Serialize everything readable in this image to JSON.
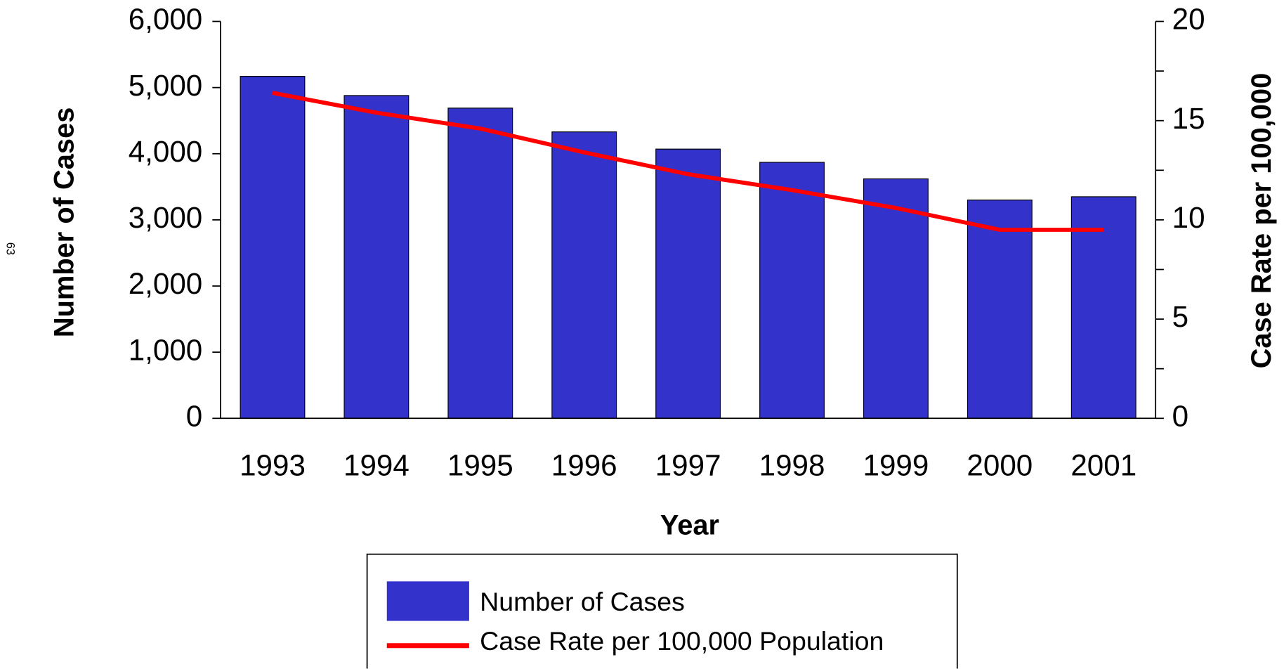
{
  "page_number": "63",
  "chart_data": {
    "type": "bar_line",
    "x_label": "Year",
    "y_label": "Number of Cases",
    "y2_label": "Case Rate per 100,000",
    "categories": [
      "1993",
      "1994",
      "1995",
      "1996",
      "1997",
      "1998",
      "1999",
      "2000",
      "2001"
    ],
    "series": [
      {
        "name": "Number of Cases",
        "type": "bar",
        "color": "#3333cc",
        "values": [
          5170,
          4880,
          4690,
          4330,
          4070,
          3870,
          3620,
          3300,
          3350
        ]
      },
      {
        "name": "Case Rate per 100,000 Population",
        "type": "line",
        "color": "#ff0000",
        "axis": "y2",
        "values": [
          16.4,
          15.4,
          14.6,
          13.4,
          12.3,
          11.5,
          10.6,
          9.5,
          9.5
        ]
      }
    ],
    "ylim": [
      0,
      6000
    ],
    "yticks": [
      0,
      {
        "value": 1000,
        "label": "1,000"
      },
      {
        "value": 2000,
        "label": "2,000"
      },
      {
        "value": 3000,
        "label": "3,000"
      },
      {
        "value": 4000,
        "label": "4,000"
      },
      {
        "value": 5000,
        "label": "5,000"
      },
      {
        "value": 6000,
        "label": "6,000"
      }
    ],
    "y2lim": [
      0,
      20
    ],
    "y2ticks": [
      0,
      5,
      10,
      15,
      20
    ],
    "y2minorticks": [
      2.5,
      7.5,
      12.5,
      17.5
    ],
    "legend": "bottom"
  }
}
